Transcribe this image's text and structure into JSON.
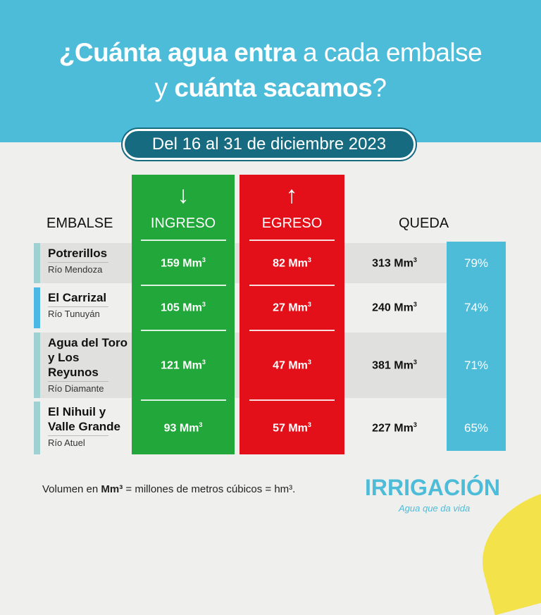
{
  "title": {
    "line1_bold": "¿Cuánta agua entra",
    "line1_rest": " a cada embalse",
    "line2_pre": "y ",
    "line2_bold": "cuánta sacamos",
    "line2_post": "?"
  },
  "period": "Del 16 al 31 de diciembre 2023",
  "headers": {
    "embalse": "EMBALSE",
    "ingreso": "INGRESO",
    "egreso": "EGRESO",
    "queda": "QUEDA"
  },
  "icons": {
    "ingreso": "arrow-down-icon",
    "egreso": "arrow-up-icon"
  },
  "unit": "Mm",
  "rows": [
    {
      "name": "Potrerillos",
      "river": "Río Mendoza",
      "ingreso": "159",
      "egreso": "82",
      "queda": "313",
      "pct": "79%"
    },
    {
      "name": "El Carrizal",
      "river": "Río Tunuyán",
      "ingreso": "105",
      "egreso": "27",
      "queda": "240",
      "pct": "74%"
    },
    {
      "name": "Agua del Toro y Los Reyunos",
      "river": "Río Diamante",
      "ingreso": "121",
      "egreso": "47",
      "queda": "381",
      "pct": "71%"
    },
    {
      "name": "El Nihuil y Valle Grande",
      "river": "Río Atuel",
      "ingreso": "93",
      "egreso": "57",
      "queda": "227",
      "pct": "65%"
    }
  ],
  "footnote": {
    "pre": "Volumen en ",
    "bold": "Mm³",
    "post": " = millones de metros cúbicos = hm³."
  },
  "logo": {
    "name": "IRRIGACIÓN",
    "tagline": "Agua que da vida"
  },
  "colors": {
    "header": "#4dbcd9",
    "ingreso": "#22a73a",
    "egreso": "#e3101a",
    "queda": "#4dbcd9",
    "period_pill": "#166b80"
  }
}
